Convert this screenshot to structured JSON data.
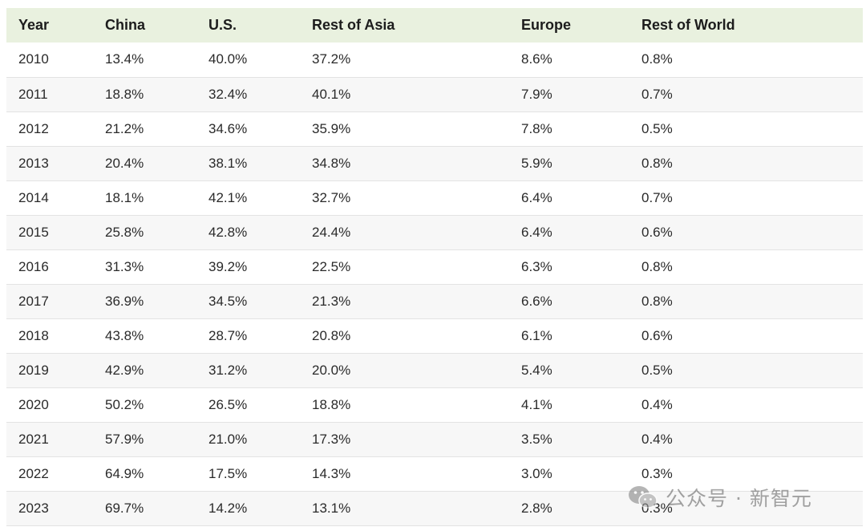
{
  "table": {
    "headers": [
      "Year",
      "China",
      "U.S.",
      "Rest of Asia",
      "Europe",
      "Rest of World"
    ],
    "rows": [
      [
        "2010",
        "13.4%",
        "40.0%",
        "37.2%",
        "8.6%",
        "0.8%"
      ],
      [
        "2011",
        "18.8%",
        "32.4%",
        "40.1%",
        "7.9%",
        "0.7%"
      ],
      [
        "2012",
        "21.2%",
        "34.6%",
        "35.9%",
        "7.8%",
        "0.5%"
      ],
      [
        "2013",
        "20.4%",
        "38.1%",
        "34.8%",
        "5.9%",
        "0.8%"
      ],
      [
        "2014",
        "18.1%",
        "42.1%",
        "32.7%",
        "6.4%",
        "0.7%"
      ],
      [
        "2015",
        "25.8%",
        "42.8%",
        "24.4%",
        "6.4%",
        "0.6%"
      ],
      [
        "2016",
        "31.3%",
        "39.2%",
        "22.5%",
        "6.3%",
        "0.8%"
      ],
      [
        "2017",
        "36.9%",
        "34.5%",
        "21.3%",
        "6.6%",
        "0.8%"
      ],
      [
        "2018",
        "43.8%",
        "28.7%",
        "20.8%",
        "6.1%",
        "0.6%"
      ],
      [
        "2019",
        "42.9%",
        "31.2%",
        "20.0%",
        "5.4%",
        "0.5%"
      ],
      [
        "2020",
        "50.2%",
        "26.5%",
        "18.8%",
        "4.1%",
        "0.4%"
      ],
      [
        "2021",
        "57.9%",
        "21.0%",
        "17.3%",
        "3.5%",
        "0.4%"
      ],
      [
        "2022",
        "64.9%",
        "17.5%",
        "14.3%",
        "3.0%",
        "0.3%"
      ],
      [
        "2023",
        "69.7%",
        "14.2%",
        "13.1%",
        "2.8%",
        "0.3%"
      ]
    ]
  },
  "watermark": {
    "text": "公众号 · 新智元",
    "icon": "wechat-icon"
  },
  "colors": {
    "header_bg": "#e9f1df",
    "row_alt_bg": "#f7f7f7",
    "border": "#e3e3e3"
  }
}
